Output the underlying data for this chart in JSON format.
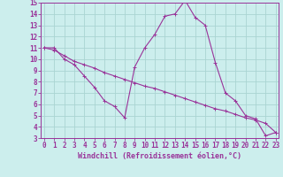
{
  "xlabel": "Windchill (Refroidissement éolien,°C)",
  "background_color": "#cceeed",
  "grid_color": "#aad4d2",
  "line_color": "#993399",
  "hours": [
    0,
    1,
    2,
    3,
    4,
    5,
    6,
    7,
    8,
    9,
    10,
    11,
    12,
    13,
    14,
    15,
    16,
    17,
    18,
    19,
    20,
    21,
    22,
    23
  ],
  "windchill": [
    11.0,
    11.0,
    10.0,
    9.5,
    8.5,
    7.5,
    6.3,
    5.8,
    4.8,
    9.3,
    11.0,
    12.2,
    13.8,
    14.0,
    15.2,
    13.7,
    13.0,
    9.7,
    7.0,
    6.3,
    5.0,
    4.7,
    3.2,
    3.5
  ],
  "temp": [
    11.0,
    10.8,
    10.3,
    9.8,
    9.5,
    9.2,
    8.8,
    8.5,
    8.2,
    7.9,
    7.6,
    7.4,
    7.1,
    6.8,
    6.5,
    6.2,
    5.9,
    5.6,
    5.4,
    5.1,
    4.8,
    4.6,
    4.3,
    3.5
  ],
  "ylim_min": 3,
  "ylim_max": 15,
  "xlim_min": 0,
  "xlim_max": 23,
  "yticks": [
    3,
    4,
    5,
    6,
    7,
    8,
    9,
    10,
    11,
    12,
    13,
    14,
    15
  ],
  "xticks": [
    0,
    1,
    2,
    3,
    4,
    5,
    6,
    7,
    8,
    9,
    10,
    11,
    12,
    13,
    14,
    15,
    16,
    17,
    18,
    19,
    20,
    21,
    22,
    23
  ],
  "tick_fontsize": 5.5,
  "xlabel_fontsize": 6,
  "marker_size": 2.5,
  "linewidth": 0.8
}
